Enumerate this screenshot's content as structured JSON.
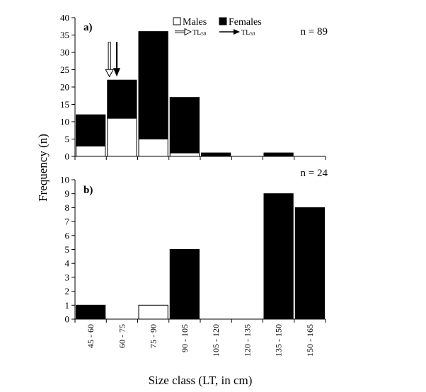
{
  "chart_data": {
    "type": "bar",
    "stacked": true,
    "ylabel": "Frequency (n)",
    "xlabel": "Size class (LT, in cm)",
    "categories": [
      "45 - 60",
      "60 - 75",
      "75 - 90",
      "90 - 105",
      "105 - 120",
      "120 - 135",
      "135 - 150",
      "150 - 165"
    ],
    "legend": {
      "placement": "top",
      "entries": [
        {
          "name": "Males",
          "color": "#ffffff"
        },
        {
          "name": "Females",
          "color": "#000000"
        }
      ],
      "markers": [
        {
          "label": "TL",
          "subscript": "50",
          "style": "hollow-arrow"
        },
        {
          "label": "TL",
          "subscript": "50",
          "style": "solid-arrow"
        }
      ]
    },
    "panels": [
      {
        "label": "a)",
        "n_text": "n = 89",
        "ylim": [
          0,
          40
        ],
        "yticks": [
          0,
          5,
          10,
          15,
          20,
          25,
          30,
          35,
          40
        ],
        "series": [
          {
            "name": "Males",
            "values": [
              3,
              11,
              5,
              1,
              0,
              0,
              0,
              0
            ]
          },
          {
            "name": "Females",
            "values": [
              9,
              11,
              31,
              16,
              1,
              0,
              1,
              0
            ]
          }
        ],
        "annotations": [
          {
            "type": "hollow-arrow",
            "x": 61.5,
            "y_from": 33,
            "y_to": 23
          },
          {
            "type": "solid-arrow",
            "x": 65.0,
            "y_from": 33,
            "y_to": 23
          }
        ]
      },
      {
        "label": "b)",
        "n_text": "n = 24",
        "ylim": [
          0,
          10
        ],
        "yticks": [
          0,
          1,
          2,
          3,
          4,
          5,
          6,
          7,
          8,
          9,
          10
        ],
        "series": [
          {
            "name": "Males",
            "values": [
              0,
              0,
              1,
              0,
              0,
              0,
              0,
              0
            ]
          },
          {
            "name": "Females",
            "values": [
              1,
              0,
              0,
              5,
              0,
              0,
              9,
              8
            ]
          }
        ]
      }
    ]
  }
}
